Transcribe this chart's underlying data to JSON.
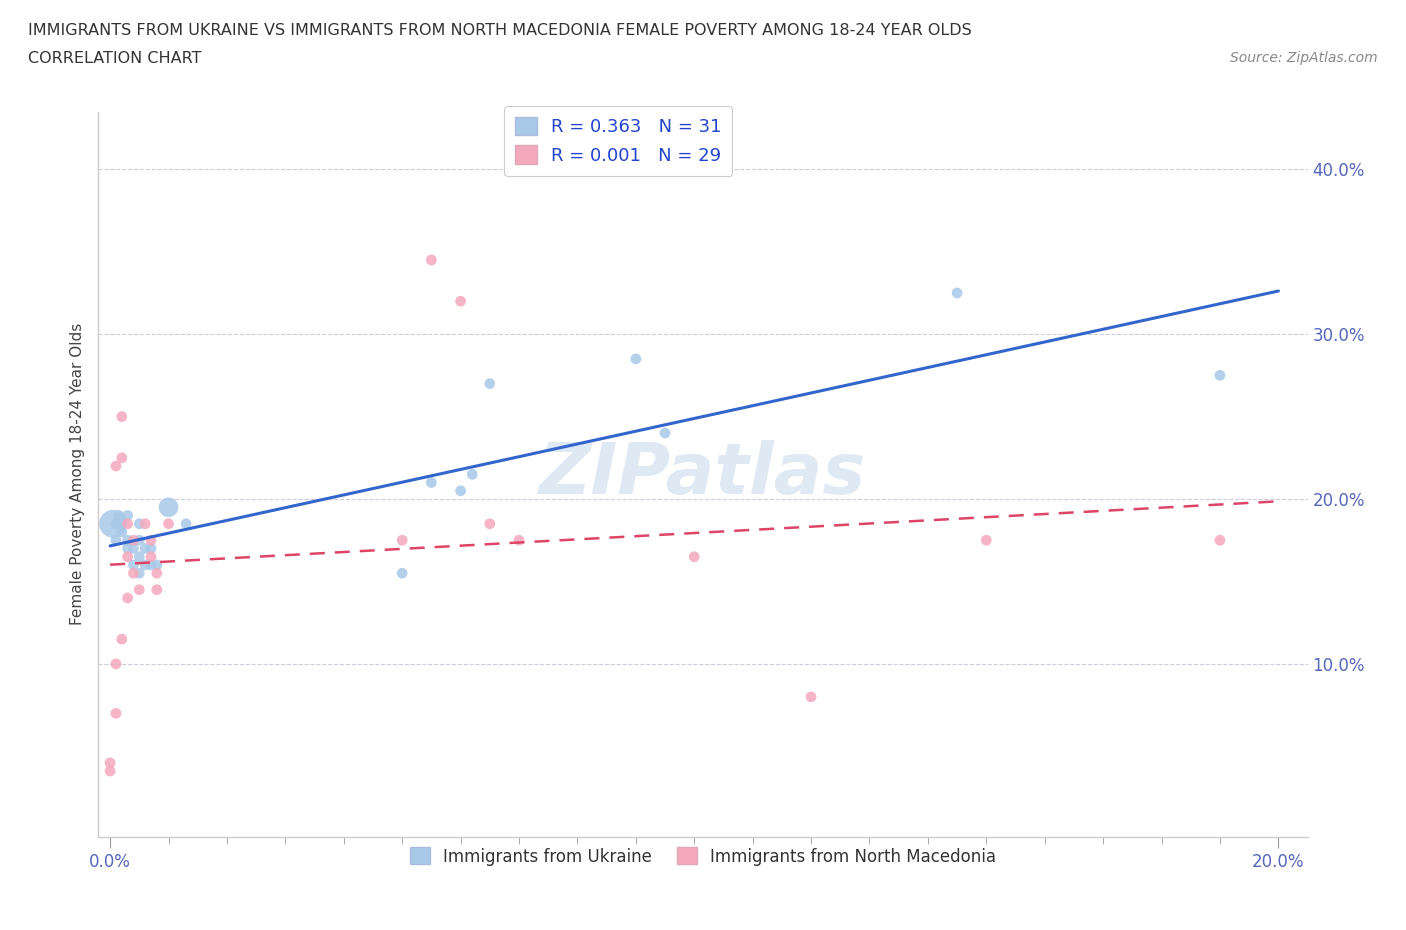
{
  "title_line1": "IMMIGRANTS FROM UKRAINE VS IMMIGRANTS FROM NORTH MACEDONIA FEMALE POVERTY AMONG 18-24 YEAR OLDS",
  "title_line2": "CORRELATION CHART",
  "source": "Source: ZipAtlas.com",
  "ylabel": "Female Poverty Among 18-24 Year Olds",
  "watermark": "ZIPatlas",
  "ukraine_R": 0.363,
  "ukraine_N": 31,
  "macedonia_R": 0.001,
  "macedonia_N": 29,
  "ukraine_color": "#a8c8e8",
  "macedonia_color": "#f4a8bc",
  "ukraine_line_color": "#3366cc",
  "macedonia_line_color": "#dd4466",
  "xlim": [
    -0.002,
    0.205
  ],
  "ylim": [
    -0.005,
    0.435
  ],
  "xlim_data": [
    0.0,
    0.2
  ],
  "ylim_data": [
    0.0,
    0.42
  ],
  "xtick_positions": [
    0.0,
    0.2
  ],
  "xtick_labels": [
    "0.0%",
    "20.0%"
  ],
  "ytick_positions": [
    0.0,
    0.1,
    0.2,
    0.3,
    0.4
  ],
  "ytick_labels": [
    "",
    "10.0%",
    "20.0%",
    "30.0%",
    "40.0%"
  ],
  "ukraine_x": [
    0.0005,
    0.001,
    0.001,
    0.0015,
    0.002,
    0.002,
    0.003,
    0.003,
    0.003,
    0.004,
    0.004,
    0.005,
    0.005,
    0.005,
    0.005,
    0.006,
    0.006,
    0.007,
    0.007,
    0.008,
    0.01,
    0.013,
    0.05,
    0.055,
    0.06,
    0.062,
    0.065,
    0.09,
    0.095,
    0.145,
    0.19
  ],
  "ukraine_y": [
    0.185,
    0.175,
    0.185,
    0.19,
    0.185,
    0.18,
    0.19,
    0.17,
    0.175,
    0.17,
    0.16,
    0.155,
    0.165,
    0.175,
    0.185,
    0.17,
    0.16,
    0.17,
    0.16,
    0.16,
    0.195,
    0.185,
    0.155,
    0.21,
    0.205,
    0.215,
    0.27,
    0.285,
    0.24,
    0.325,
    0.275
  ],
  "ukraine_sizes": [
    400,
    60,
    60,
    60,
    60,
    60,
    60,
    60,
    60,
    60,
    60,
    60,
    60,
    60,
    60,
    60,
    60,
    60,
    60,
    60,
    200,
    60,
    60,
    60,
    60,
    60,
    60,
    60,
    60,
    60,
    60
  ],
  "macedonia_x": [
    0.0,
    0.0,
    0.001,
    0.001,
    0.001,
    0.002,
    0.002,
    0.002,
    0.003,
    0.003,
    0.003,
    0.004,
    0.004,
    0.005,
    0.006,
    0.007,
    0.007,
    0.008,
    0.008,
    0.01,
    0.05,
    0.055,
    0.06,
    0.065,
    0.07,
    0.1,
    0.12,
    0.15,
    0.19
  ],
  "macedonia_y": [
    0.04,
    0.035,
    0.1,
    0.07,
    0.22,
    0.25,
    0.225,
    0.115,
    0.185,
    0.165,
    0.14,
    0.175,
    0.155,
    0.145,
    0.185,
    0.175,
    0.165,
    0.155,
    0.145,
    0.185,
    0.175,
    0.345,
    0.32,
    0.185,
    0.175,
    0.165,
    0.08,
    0.175,
    0.175
  ],
  "macedonia_sizes": [
    60,
    60,
    60,
    60,
    60,
    60,
    60,
    60,
    60,
    60,
    60,
    60,
    60,
    60,
    60,
    60,
    60,
    60,
    60,
    60,
    60,
    60,
    60,
    60,
    60,
    60,
    60,
    60,
    60
  ]
}
